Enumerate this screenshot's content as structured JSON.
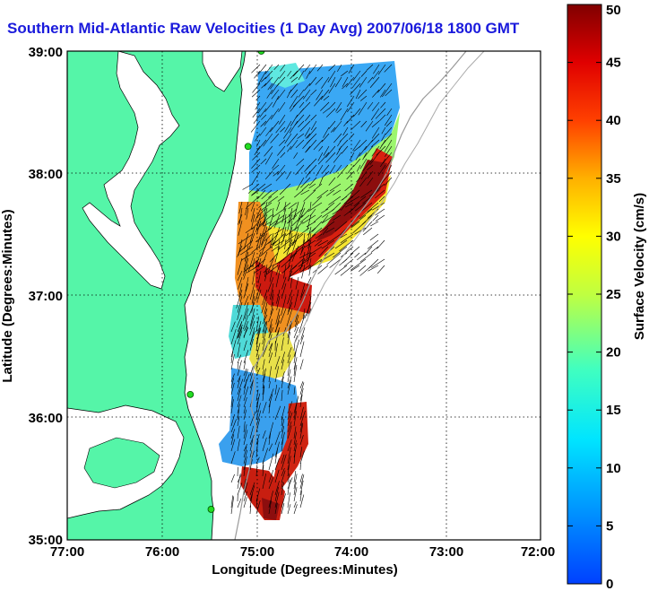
{
  "title": "Southern Mid-Atlantic Raw Velocities (1 Day Avg) 2007/06/18 1800 GMT",
  "map": {
    "xlabel": "Longitude (Degrees:Minutes)",
    "ylabel": "Latitude (Degrees:Minutes)",
    "x_ticks": [
      "77:00",
      "76:00",
      "75:00",
      "74:00",
      "73:00",
      "72:00"
    ],
    "y_ticks": [
      "39:00",
      "38:00",
      "37:00",
      "36:00",
      "35:00"
    ],
    "lon_range": [
      -77,
      -72
    ],
    "lat_range": [
      35,
      39
    ],
    "land_color": "#55f5a8",
    "grid": "dotted"
  },
  "colorbar": {
    "label": "Surface Velocity (cm/s)",
    "ticks": [
      "0",
      "5",
      "10",
      "15",
      "20",
      "25",
      "30",
      "35",
      "40",
      "45",
      "50"
    ],
    "range": [
      0,
      50
    ],
    "colormap": "jet"
  },
  "stations": [
    {
      "lon": -74.95,
      "lat": 39.0
    },
    {
      "lon": -75.09,
      "lat": 38.22
    },
    {
      "lon": -75.7,
      "lat": 36.19
    },
    {
      "lon": -75.48,
      "lat": 35.25
    }
  ]
}
